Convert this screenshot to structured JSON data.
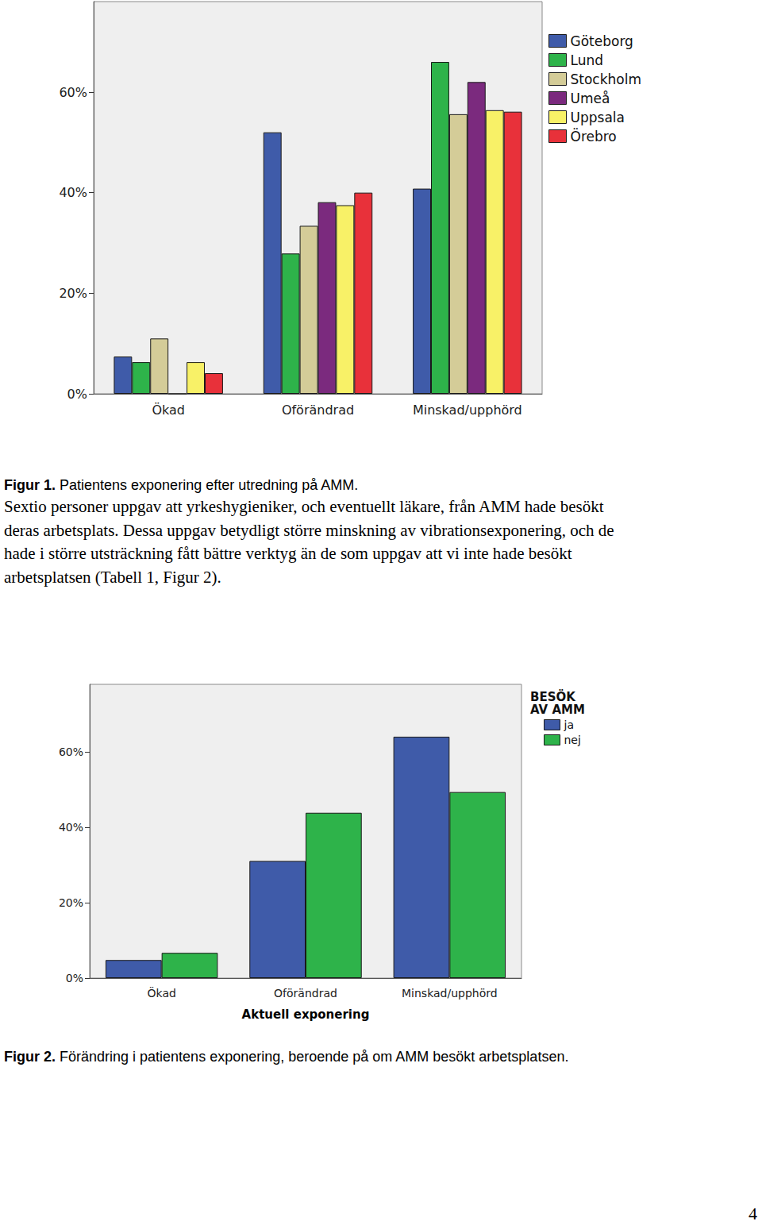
{
  "chart_data": [
    {
      "type": "bar",
      "categories": [
        "Ökad",
        "Oförändrad",
        "Minskad/upphörd"
      ],
      "series": [
        {
          "name": "Göteborg",
          "color": "#3f5ba9",
          "values": [
            7.4,
            52.0,
            40.8
          ]
        },
        {
          "name": "Lund",
          "color": "#2eb34a",
          "values": [
            6.3,
            27.9,
            66.0
          ]
        },
        {
          "name": "Stockholm",
          "color": "#d4cc98",
          "values": [
            11.0,
            33.4,
            55.6
          ]
        },
        {
          "name": "Umeå",
          "color": "#7b2a7e",
          "values": [
            0,
            38.1,
            62.0
          ]
        },
        {
          "name": "Uppsala",
          "color": "#f8f167",
          "values": [
            6.3,
            37.5,
            56.4
          ]
        },
        {
          "name": "Örebro",
          "color": "#e8313a",
          "values": [
            4.1,
            40.0,
            56.1
          ]
        }
      ],
      "ylim": [
        0,
        78
      ],
      "yticks": [
        {
          "value": 0,
          "label": "0%"
        },
        {
          "value": 20,
          "label": "20%"
        },
        {
          "value": 40,
          "label": "40%"
        },
        {
          "value": 60,
          "label": "60%"
        }
      ],
      "grid": false,
      "legend": "right"
    },
    {
      "type": "bar",
      "xlabel": "Aktuell exponering",
      "legend_title": "BESÖK AV AMM",
      "categories": [
        "Ökad",
        "Oförändrad",
        "Minskad/upphörd"
      ],
      "series": [
        {
          "name": "ja",
          "color": "#3f5ba9",
          "values": [
            4.8,
            31.1,
            64.1
          ]
        },
        {
          "name": "nej",
          "color": "#2eb34a",
          "values": [
            6.7,
            43.9,
            49.4
          ]
        }
      ],
      "ylim": [
        0,
        78
      ],
      "yticks": [
        {
          "value": 0,
          "label": "0%"
        },
        {
          "value": 20,
          "label": "20%"
        },
        {
          "value": 40,
          "label": "40%"
        },
        {
          "value": 60,
          "label": "60%"
        }
      ],
      "grid": false,
      "legend": "right"
    }
  ],
  "document": {
    "captions": [
      {
        "label": "Figur 1.",
        "text": "Patientens exponering efter utredning på AMM."
      },
      {
        "label": "Figur 2.",
        "text": "Förändring i patientens exponering, beroende på om AMM besökt arbetsplatsen."
      }
    ],
    "paragraph": [
      "Sextio personer uppgav att yrkeshygieniker, och eventuellt läkare, från AMM hade besökt",
      "deras arbetsplats. Dessa uppgav betydligt större minskning av vibrationsexponering, och de",
      "hade i större utsträckning fått bättre verktyg än de som uppgav att vi inte hade besökt",
      "arbetsplatsen (Tabell 1, Figur 2)."
    ],
    "page_number": "4"
  }
}
